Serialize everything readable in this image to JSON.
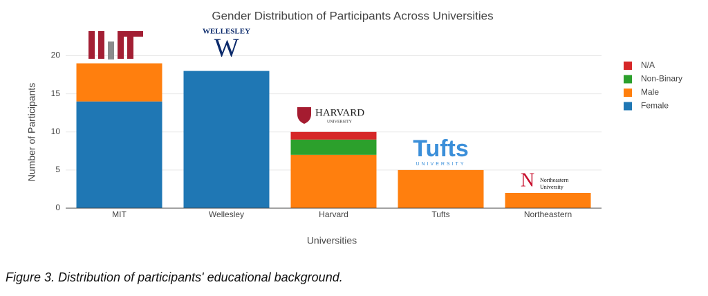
{
  "chart_data": {
    "type": "stacked_bar",
    "title": "Gender Distribution of Participants Across Universities",
    "x_label": "Universities",
    "y_label": "Number of Participants",
    "categories": [
      "MIT",
      "Wellesley",
      "Harvard",
      "Tufts",
      "Northeastern"
    ],
    "series": [
      {
        "name": "Female",
        "color": "#1f77b4",
        "values": [
          14,
          18,
          0,
          0,
          0
        ]
      },
      {
        "name": "Male",
        "color": "#ff7f0e",
        "values": [
          5,
          0,
          7,
          5,
          2
        ]
      },
      {
        "name": "Non-Binary",
        "color": "#2ca02c",
        "values": [
          0,
          0,
          2,
          0,
          0
        ]
      },
      {
        "name": "N/A",
        "color": "#d62728",
        "values": [
          0,
          0,
          1,
          0,
          0
        ]
      }
    ],
    "ylim": [
      0,
      21.5
    ],
    "yticks": [
      0,
      5,
      10,
      15,
      20
    ],
    "grid": true,
    "legend": "right",
    "logo_texts": [
      [],
      [
        "WELLESLEY"
      ],
      [
        "HARVARD",
        "UNIVERSITY"
      ],
      [
        "Tufts",
        "UNIVERSITY"
      ],
      [
        "Northeastern",
        "University"
      ]
    ]
  },
  "caption": "Figure 3. Distribution of participants' educational background."
}
